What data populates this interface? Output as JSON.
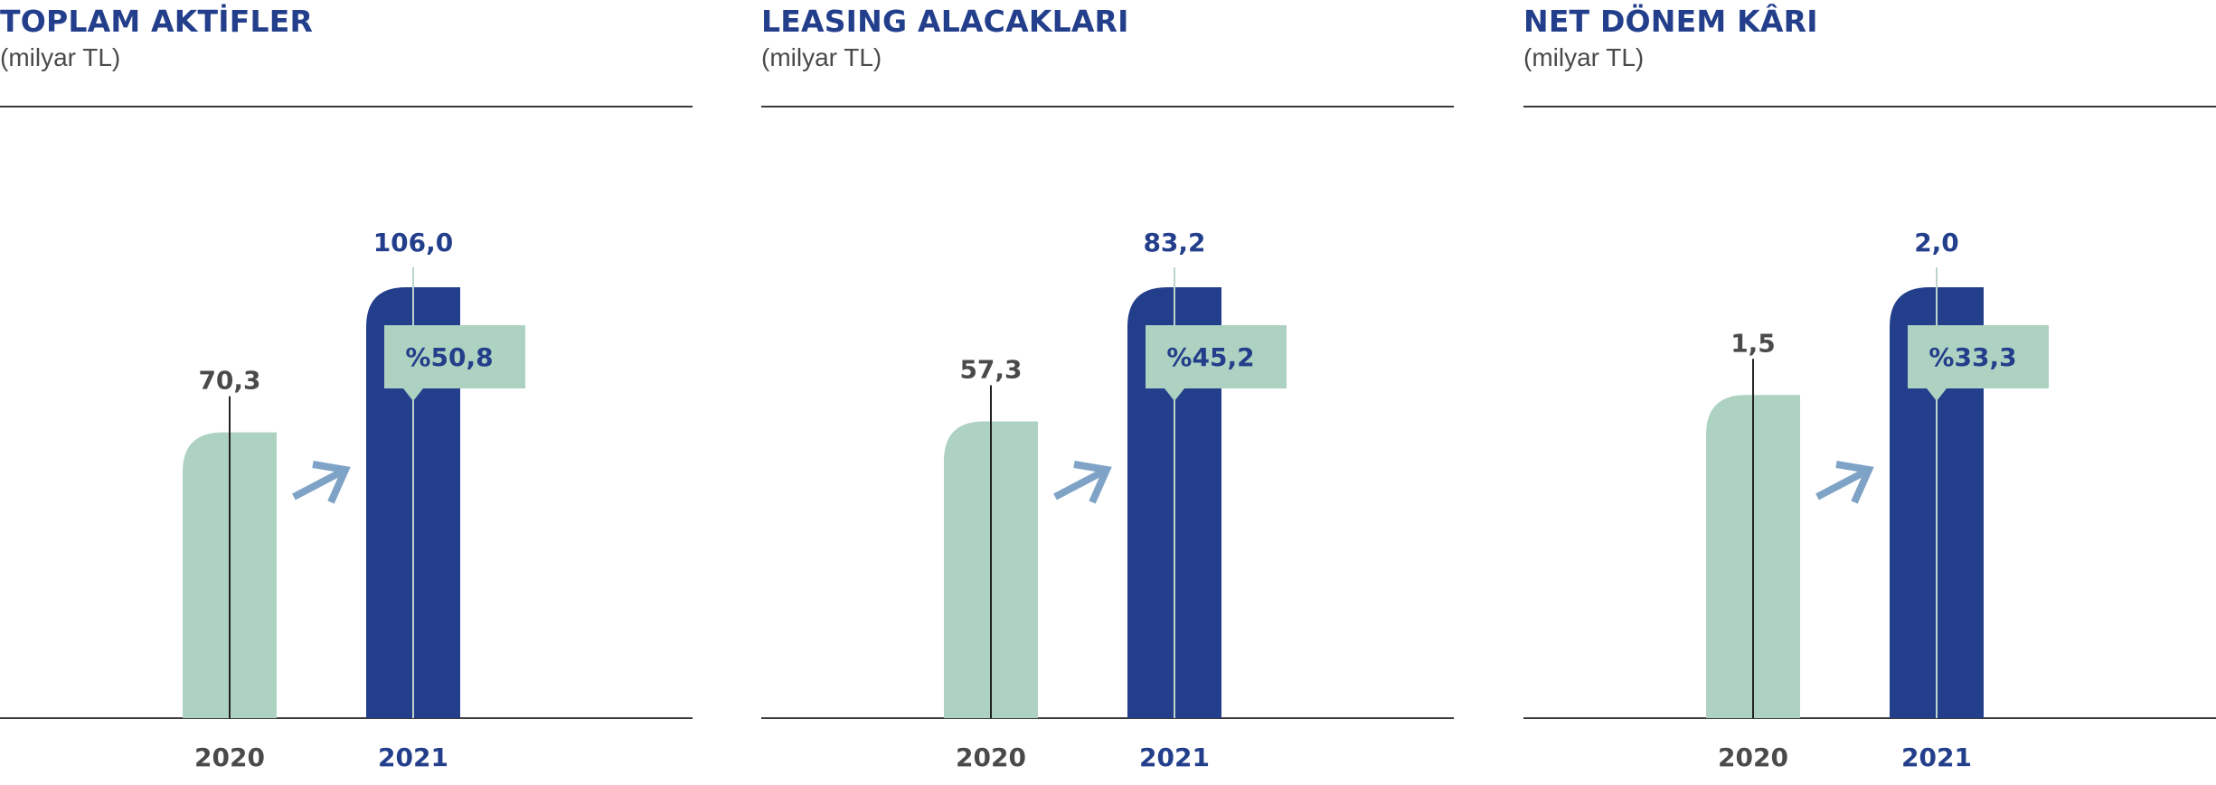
{
  "colors": {
    "bar_2020": "#AED2C1",
    "bar_2021": "#233F8C",
    "badge_bg": "#AED2C1",
    "badge_text": "#233F8C",
    "arrow": "#7FA3C6",
    "title": "#233F8C",
    "value_2020": "#4a4a4a",
    "value_2021": "#233F8C",
    "axis": "#3a3a3a"
  },
  "chart_data": [
    {
      "type": "bar",
      "title": "TOPLAM AKTİFLER",
      "unit": "(milyar TL)",
      "categories": [
        "2020",
        "2021"
      ],
      "values": [
        70.3,
        106.0
      ],
      "value_labels": [
        "70,3",
        "106,0"
      ],
      "growth_label": "%50,8",
      "growth_icon": "arrow-up-right-icon"
    },
    {
      "type": "bar",
      "title": "LEASING ALACAKLARI",
      "unit": "(milyar TL)",
      "categories": [
        "2020",
        "2021"
      ],
      "values": [
        57.3,
        83.2
      ],
      "value_labels": [
        "57,3",
        "83,2"
      ],
      "growth_label": "%45,2",
      "growth_icon": "arrow-up-right-icon"
    },
    {
      "type": "bar",
      "title": "NET DÖNEM KÂRI",
      "unit": "(milyar TL)",
      "categories": [
        "2020",
        "2021"
      ],
      "values": [
        1.5,
        2.0
      ],
      "value_labels": [
        "1,5",
        "2,0"
      ],
      "growth_label": "%33,3",
      "growth_icon": "arrow-up-right-icon"
    }
  ]
}
